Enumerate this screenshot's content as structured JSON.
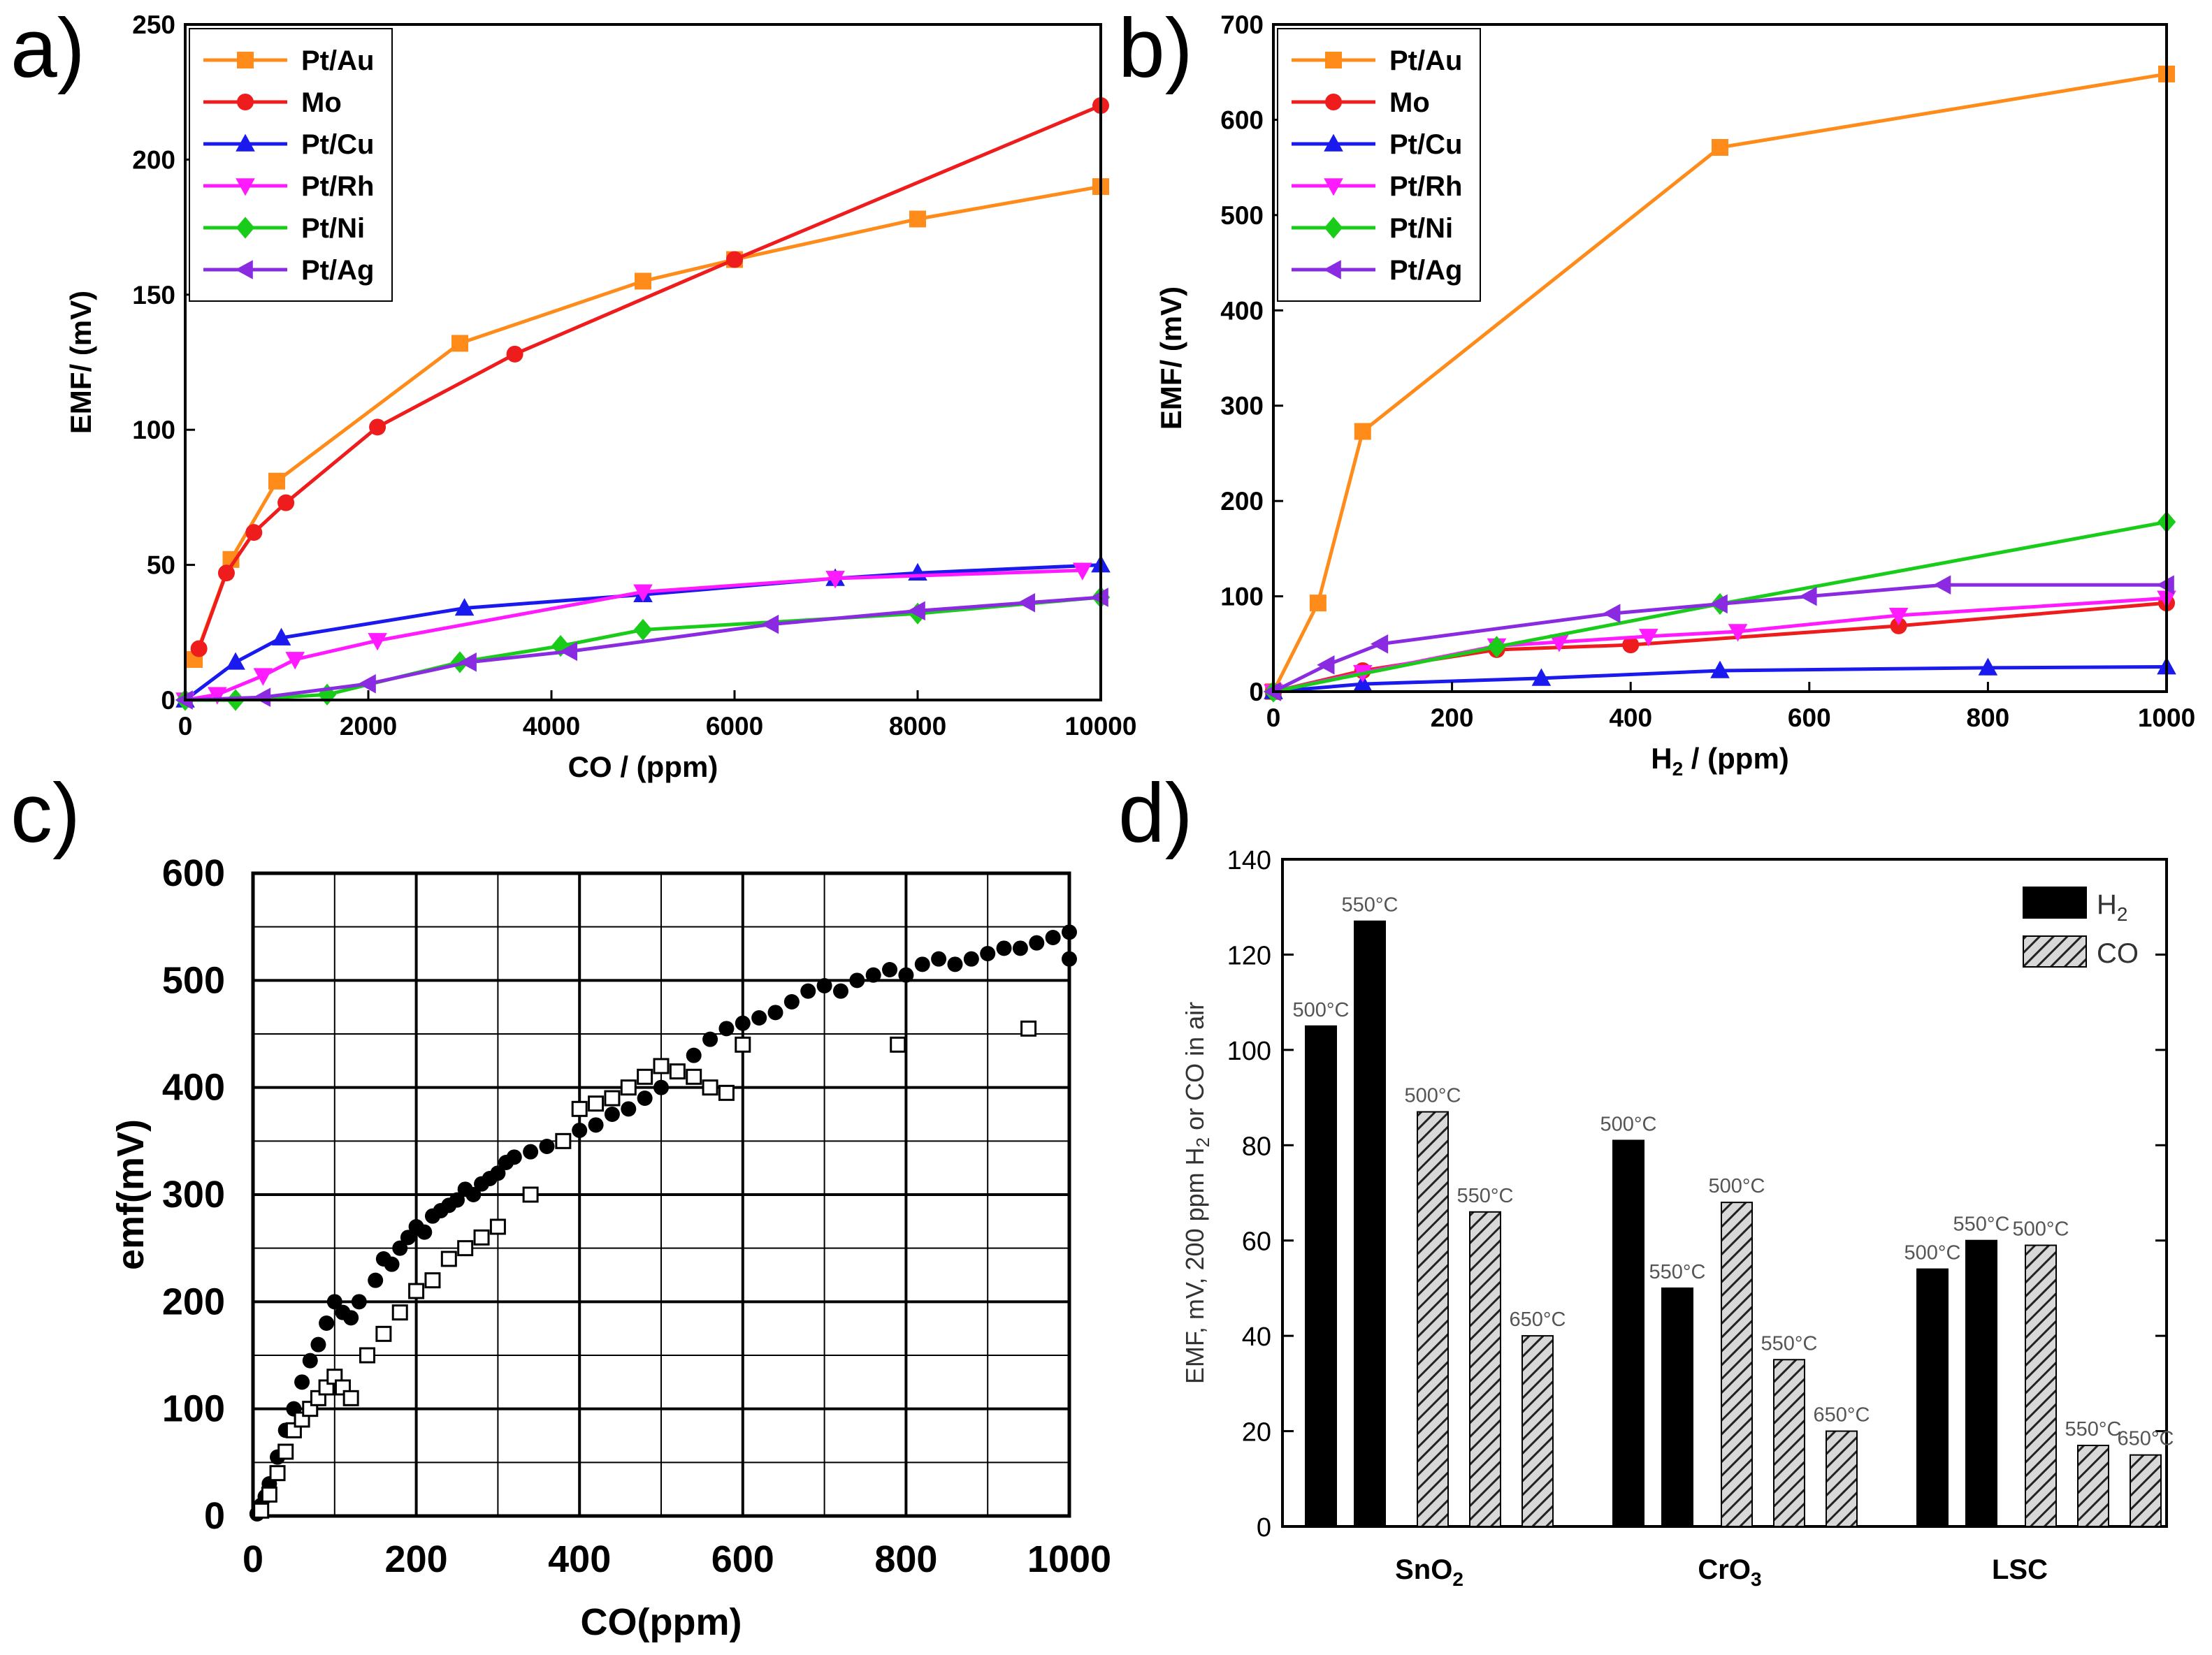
{
  "chart_data": [
    {
      "panel": "a)",
      "type": "line",
      "xlabel": "CO / (ppm)",
      "ylabel": "EMF/ (mV)",
      "xlim": [
        0,
        10000
      ],
      "ylim": [
        0,
        250
      ],
      "xticks": [
        0,
        2000,
        4000,
        6000,
        8000,
        10000
      ],
      "yticks": [
        0,
        50,
        100,
        150,
        200,
        250
      ],
      "legend_position": "top-left",
      "series": [
        {
          "name": "Pt/Au",
          "color": "#ff8c1a",
          "marker": "square",
          "x": [
            100,
            500,
            1000,
            3000,
            5000,
            6000,
            8000,
            10000
          ],
          "y": [
            15,
            52,
            81,
            132,
            155,
            163,
            178,
            190
          ]
        },
        {
          "name": "Mo",
          "color": "#ee1c1c",
          "marker": "circle",
          "x": [
            150,
            450,
            750,
            1100,
            2100,
            3600,
            6000,
            10000
          ],
          "y": [
            19,
            47,
            62,
            73,
            101,
            128,
            163,
            220
          ]
        },
        {
          "name": "Pt/Cu",
          "color": "#1a1aee",
          "marker": "triangle-up",
          "x": [
            0,
            550,
            1050,
            3050,
            5000,
            7100,
            8000,
            10000
          ],
          "y": [
            0,
            14,
            23,
            34,
            39,
            45,
            47,
            50
          ]
        },
        {
          "name": "Pt/Rh",
          "color": "#ff1aff",
          "marker": "triangle-down",
          "x": [
            0,
            350,
            850,
            1200,
            2100,
            5000,
            7100,
            9800
          ],
          "y": [
            0,
            2,
            9,
            15,
            22,
            40,
            45,
            48
          ]
        },
        {
          "name": "Pt/Ni",
          "color": "#1acc1a",
          "marker": "diamond",
          "x": [
            0,
            550,
            1550,
            3000,
            4100,
            5000,
            8000,
            10000
          ],
          "y": [
            0,
            0,
            2,
            14,
            20,
            26,
            32,
            38
          ]
        },
        {
          "name": "Pt/Ag",
          "color": "#8a2be2",
          "marker": "triangle-left",
          "x": [
            0,
            850,
            2000,
            3100,
            4200,
            6400,
            8000,
            9200,
            10000
          ],
          "y": [
            0,
            1,
            6,
            14,
            18,
            28,
            33,
            36,
            38
          ]
        }
      ]
    },
    {
      "panel": "b)",
      "type": "line",
      "xlabel_main": "H",
      "xlabel_sub": "2",
      "xlabel_tail": " / (ppm)",
      "ylabel": "EMF/ (mV)",
      "xlim": [
        0,
        1000
      ],
      "ylim": [
        0,
        700
      ],
      "xticks": [
        0,
        200,
        400,
        600,
        800,
        1000
      ],
      "yticks": [
        0,
        100,
        200,
        300,
        400,
        500,
        600,
        700
      ],
      "legend_position": "top-left",
      "series": [
        {
          "name": "Pt/Au",
          "color": "#ff8c1a",
          "marker": "square",
          "x": [
            0,
            50,
            100,
            500,
            1000
          ],
          "y": [
            0,
            93,
            273,
            571,
            648
          ]
        },
        {
          "name": "Mo",
          "color": "#ee1c1c",
          "marker": "circle",
          "x": [
            0,
            100,
            250,
            400,
            700,
            1000
          ],
          "y": [
            0,
            22,
            44,
            49,
            69,
            93
          ]
        },
        {
          "name": "Pt/Cu",
          "color": "#1a1aee",
          "marker": "triangle-up",
          "x": [
            0,
            100,
            300,
            500,
            800,
            1000
          ],
          "y": [
            0,
            8,
            14,
            22,
            25,
            26
          ]
        },
        {
          "name": "Pt/Rh",
          "color": "#ff1aff",
          "marker": "triangle-down",
          "x": [
            0,
            100,
            250,
            320,
            420,
            520,
            700,
            1000
          ],
          "y": [
            0,
            20,
            48,
            52,
            58,
            63,
            80,
            98
          ]
        },
        {
          "name": "Pt/Ni",
          "color": "#1acc1a",
          "marker": "diamond",
          "x": [
            0,
            250,
            500,
            1000
          ],
          "y": [
            0,
            47,
            92,
            178
          ]
        },
        {
          "name": "Pt/Ag",
          "color": "#8a2be2",
          "marker": "triangle-left",
          "x": [
            0,
            60,
            120,
            380,
            500,
            600,
            750,
            1000
          ],
          "y": [
            0,
            28,
            50,
            82,
            92,
            100,
            112,
            112
          ]
        }
      ]
    },
    {
      "panel": "c)",
      "type": "scatter",
      "xlabel": "CO(ppm)",
      "ylabel": "emf(mV)",
      "xlim": [
        0,
        1000
      ],
      "ylim": [
        0,
        600
      ],
      "xticks": [
        0,
        200,
        400,
        600,
        800,
        1000
      ],
      "yticks": [
        0,
        100,
        200,
        300,
        400,
        500,
        600
      ],
      "grid": true,
      "series": [
        {
          "name": "filled circles",
          "marker": "filled-circle",
          "x": [
            5,
            10,
            15,
            20,
            30,
            40,
            50,
            60,
            70,
            80,
            90,
            100,
            110,
            120,
            130,
            150,
            160,
            170,
            180,
            190,
            200,
            210,
            220,
            230,
            240,
            250,
            260,
            270,
            280,
            290,
            300,
            310,
            320,
            340,
            360,
            380,
            400,
            420,
            440,
            460,
            480,
            500,
            520,
            540,
            560,
            580,
            600,
            620,
            640,
            660,
            680,
            700,
            720,
            740,
            760,
            780,
            800,
            820,
            840,
            860,
            880,
            900,
            920,
            940,
            960,
            980,
            1000,
            1000
          ],
          "y": [
            2,
            10,
            18,
            30,
            55,
            80,
            100,
            125,
            145,
            160,
            180,
            200,
            190,
            185,
            200,
            220,
            240,
            235,
            250,
            260,
            270,
            265,
            280,
            285,
            290,
            295,
            305,
            300,
            310,
            315,
            320,
            330,
            335,
            340,
            345,
            350,
            360,
            365,
            375,
            380,
            390,
            400,
            415,
            430,
            445,
            455,
            460,
            465,
            470,
            480,
            490,
            495,
            490,
            500,
            505,
            510,
            505,
            515,
            520,
            515,
            520,
            525,
            530,
            530,
            535,
            540,
            545,
            520
          ]
        },
        {
          "name": "open squares",
          "marker": "open-square",
          "x": [
            10,
            20,
            30,
            40,
            50,
            60,
            70,
            80,
            90,
            100,
            110,
            120,
            140,
            160,
            180,
            200,
            220,
            240,
            260,
            280,
            300,
            340,
            380,
            400,
            420,
            440,
            460,
            480,
            500,
            520,
            540,
            560,
            580,
            600,
            790,
            950
          ],
          "y": [
            5,
            20,
            40,
            60,
            80,
            90,
            100,
            110,
            120,
            130,
            120,
            110,
            150,
            170,
            190,
            210,
            220,
            240,
            250,
            260,
            270,
            300,
            350,
            380,
            385,
            390,
            400,
            410,
            420,
            415,
            410,
            400,
            395,
            440,
            440,
            455
          ]
        }
      ]
    },
    {
      "panel": "d)",
      "type": "bar",
      "ylabel": "EMF, mV, 200 ppm H2 or CO in air",
      "ylim": [
        0,
        140
      ],
      "yticks": [
        0,
        20,
        40,
        60,
        80,
        100,
        120,
        140
      ],
      "categories": [
        "SnO2",
        "CrO3",
        "LSC"
      ],
      "legend": [
        {
          "name": "H2",
          "style": "solid"
        },
        {
          "name": "CO",
          "style": "hatched"
        }
      ],
      "bars": [
        {
          "group": "SnO2",
          "series": "H2",
          "label": "500°C",
          "value": 105
        },
        {
          "group": "SnO2",
          "series": "H2",
          "label": "550°C",
          "value": 127
        },
        {
          "group": "SnO2",
          "series": "CO",
          "label": "500°C",
          "value": 87
        },
        {
          "group": "SnO2",
          "series": "CO",
          "label": "550°C",
          "value": 66
        },
        {
          "group": "SnO2",
          "series": "CO",
          "label": "650°C",
          "value": 40
        },
        {
          "group": "CrO3",
          "series": "H2",
          "label": "500°C",
          "value": 81
        },
        {
          "group": "CrO3",
          "series": "H2",
          "label": "550°C",
          "value": 50
        },
        {
          "group": "CrO3",
          "series": "CO",
          "label": "500°C",
          "value": 68
        },
        {
          "group": "CrO3",
          "series": "CO",
          "label": "550°C",
          "value": 35
        },
        {
          "group": "CrO3",
          "series": "CO",
          "label": "650°C",
          "value": 20
        },
        {
          "group": "LSC",
          "series": "H2",
          "label": "500°C",
          "value": 54
        },
        {
          "group": "LSC",
          "series": "H2",
          "label": "550°C",
          "value": 60
        },
        {
          "group": "LSC",
          "series": "CO",
          "label": "500°C",
          "value": 59
        },
        {
          "group": "LSC",
          "series": "CO",
          "label": "550°C",
          "value": 17
        },
        {
          "group": "LSC",
          "series": "CO",
          "label": "650°C",
          "value": 15
        }
      ]
    }
  ]
}
